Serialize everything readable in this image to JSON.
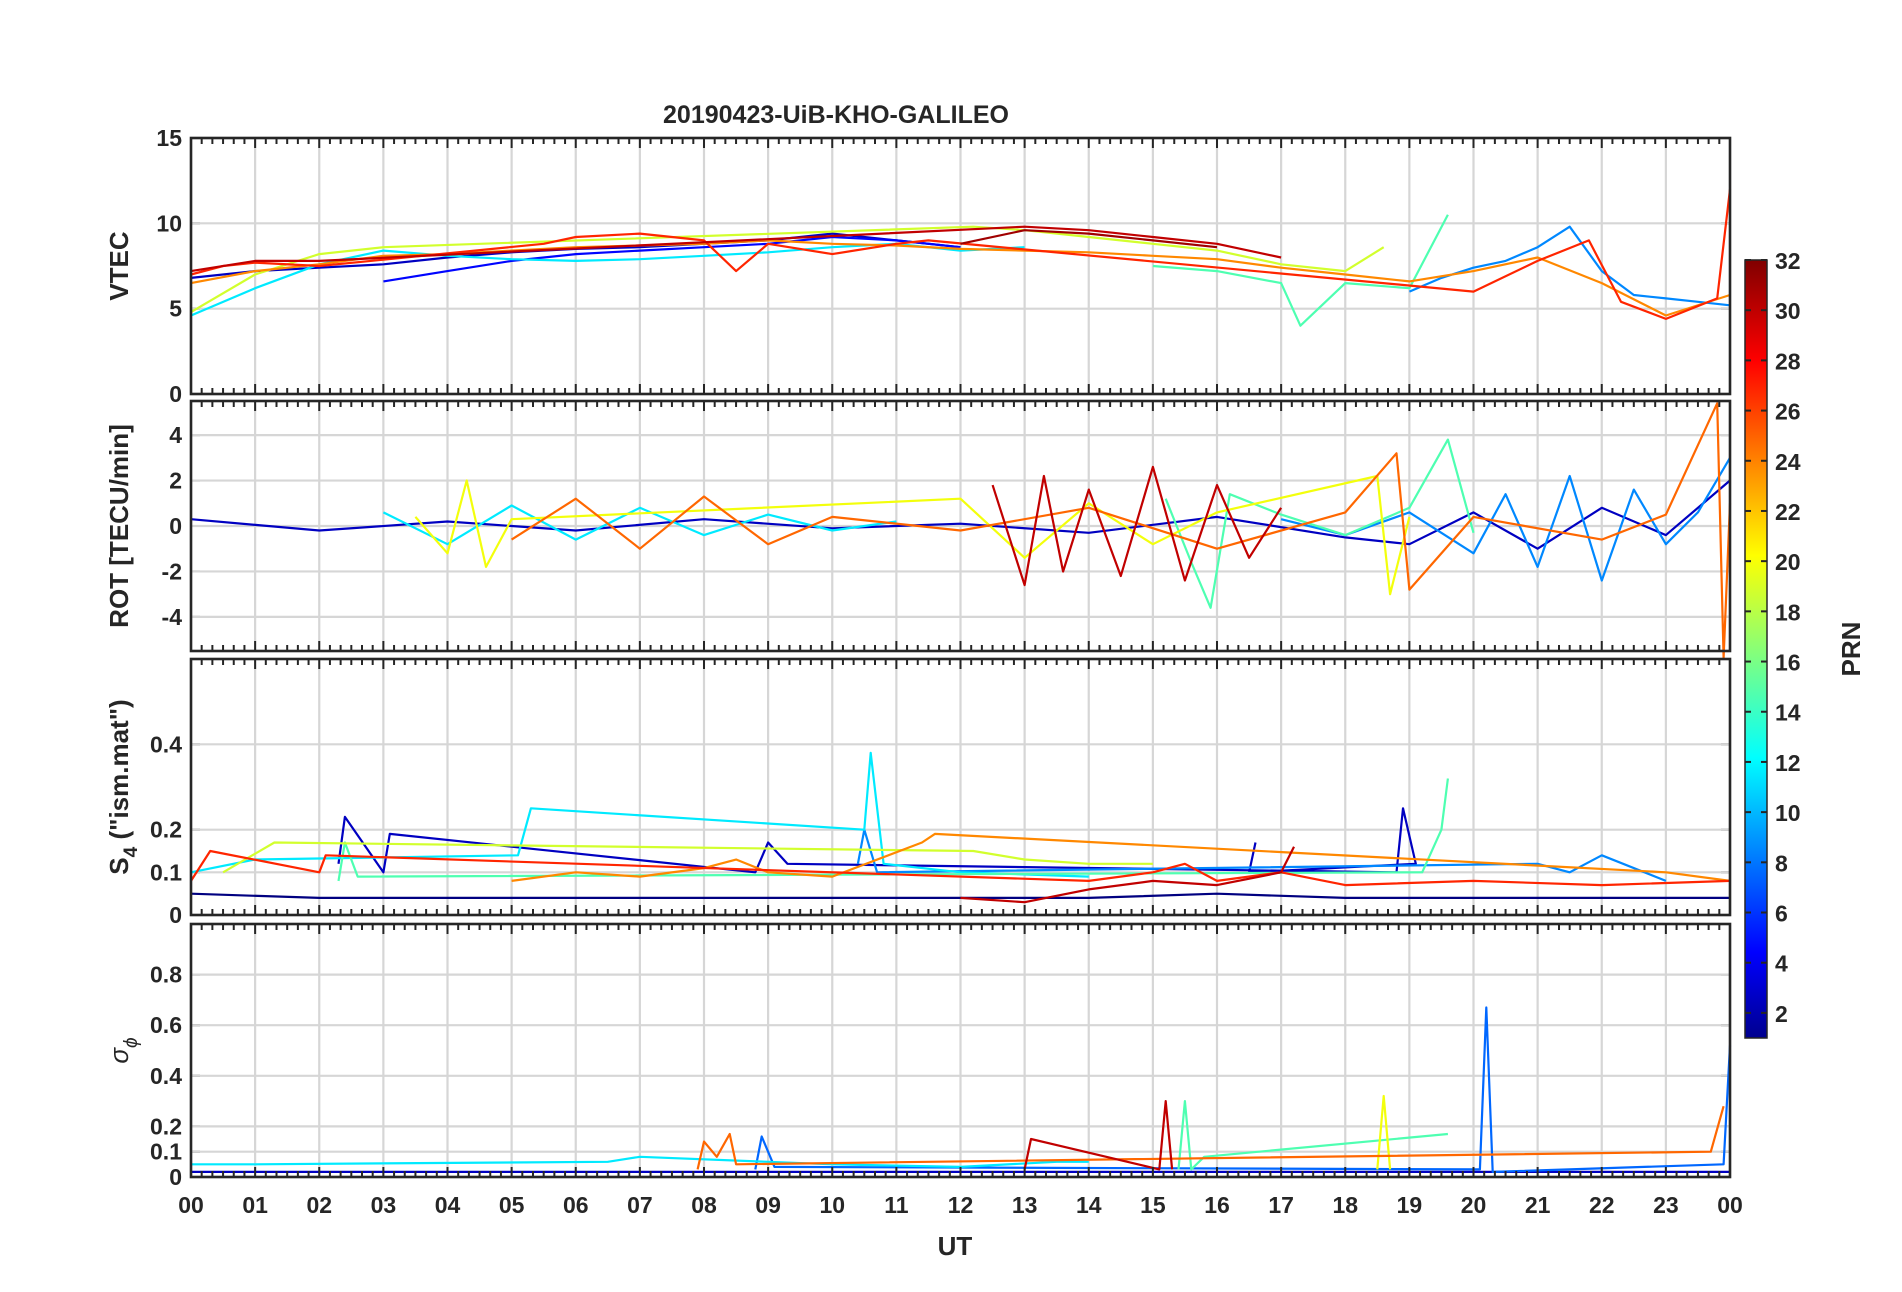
{
  "chart_data": {
    "type": "line",
    "title": "20190423-UiB-KHO-GALILEO",
    "xlabel": "UT",
    "x_ticks": [
      "00",
      "01",
      "02",
      "03",
      "04",
      "05",
      "06",
      "07",
      "08",
      "09",
      "10",
      "11",
      "12",
      "13",
      "14",
      "15",
      "16",
      "17",
      "18",
      "19",
      "20",
      "21",
      "22",
      "23",
      "00"
    ],
    "xlim_hours": [
      0,
      24
    ],
    "grid": true,
    "colorbar": {
      "label": "PRN",
      "range": [
        1,
        32
      ],
      "ticks": [
        "32",
        "30",
        "28",
        "26",
        "24",
        "22",
        "20",
        "18",
        "16",
        "14",
        "12",
        "10",
        "8",
        "6",
        "4",
        "2"
      ],
      "colormap": "jet",
      "placement": "right"
    },
    "panels": [
      {
        "key": "vtec",
        "ylabel": "VTEC",
        "ylim": [
          0,
          15
        ],
        "y_ticks": [
          "15",
          "10",
          "5",
          "0"
        ],
        "series": [
          {
            "prn": 3,
            "x": [
              0,
              1,
              2,
              3,
              4,
              5,
              6,
              7,
              8,
              9,
              10,
              11,
              12
            ],
            "y": [
              6.8,
              7.2,
              7.4,
              7.6,
              8.0,
              8.3,
              8.5,
              8.6,
              8.8,
              9.0,
              9.4,
              9.0,
              8.6
            ]
          },
          {
            "prn": 5,
            "x": [
              3,
              4,
              5,
              6,
              7,
              8,
              9,
              10,
              11,
              12
            ],
            "y": [
              6.6,
              7.2,
              7.8,
              8.2,
              8.4,
              8.6,
              8.8,
              9.2,
              9.0,
              8.6
            ]
          },
          {
            "prn": 9,
            "x": [
              19,
              19.5,
              20,
              20.5,
              21,
              21.5,
              22,
              22.5,
              23,
              23.5,
              24
            ],
            "y": [
              6.0,
              6.8,
              7.4,
              7.8,
              8.6,
              9.8,
              7.2,
              5.8,
              5.6,
              5.4,
              5.2
            ]
          },
          {
            "prn": 12,
            "x": [
              0,
              1,
              2,
              3,
              4,
              5,
              6,
              7,
              8,
              9,
              10,
              11,
              12,
              13
            ],
            "y": [
              4.6,
              6.2,
              7.6,
              8.4,
              8.1,
              7.9,
              7.8,
              7.9,
              8.1,
              8.3,
              8.6,
              8.8,
              8.4,
              8.6
            ]
          },
          {
            "prn": 15,
            "x": [
              15,
              16,
              17,
              17.3,
              18,
              19,
              19.6
            ],
            "y": [
              7.5,
              7.2,
              6.5,
              4.0,
              6.5,
              6.2,
              10.5
            ]
          },
          {
            "prn": 19,
            "x": [
              0,
              1,
              2,
              3,
              12.2,
              13,
              14,
              15,
              16,
              17,
              18,
              18.6
            ],
            "y": [
              4.8,
              7.0,
              8.2,
              8.6,
              9.8,
              9.6,
              9.2,
              8.8,
              8.4,
              7.6,
              7.2,
              8.6
            ]
          },
          {
            "prn": 24,
            "x": [
              0,
              1,
              2,
              3,
              4,
              5,
              6,
              7,
              8,
              9,
              10,
              11,
              12,
              13,
              14,
              15,
              16,
              17,
              18,
              19,
              20,
              21,
              22,
              23,
              24
            ],
            "y": [
              6.5,
              7.2,
              7.6,
              8.1,
              8.2,
              8.4,
              8.6,
              8.7,
              8.8,
              9.0,
              8.8,
              8.7,
              8.5,
              8.4,
              8.3,
              8.1,
              7.9,
              7.4,
              7.0,
              6.6,
              7.2,
              8.0,
              6.5,
              4.6,
              5.8
            ]
          },
          {
            "prn": 27,
            "x": [
              0,
              0.5,
              1,
              2,
              5.5,
              6,
              7,
              8,
              8.5,
              9,
              10,
              11,
              11.5,
              20,
              21,
              21.8,
              22.3,
              23,
              23.8,
              24
            ],
            "y": [
              7.0,
              7.5,
              7.7,
              7.5,
              8.8,
              9.2,
              9.4,
              9.0,
              7.2,
              8.8,
              8.2,
              8.8,
              9.0,
              6.0,
              7.8,
              9.0,
              5.4,
              4.4,
              5.6,
              12.0
            ]
          },
          {
            "prn": 30,
            "x": [
              0,
              1,
              2,
              13,
              14,
              15,
              16,
              17
            ],
            "y": [
              7.2,
              7.8,
              7.8,
              9.8,
              9.6,
              9.2,
              8.8,
              8.0
            ]
          },
          {
            "prn": 31,
            "x": [
              12,
              13,
              14,
              15,
              16
            ],
            "y": [
              8.8,
              9.6,
              9.4,
              9.0,
              8.6
            ]
          }
        ]
      },
      {
        "key": "rot",
        "ylabel": "ROT [TECU/min]",
        "ylim": [
          -5.5,
          5.5
        ],
        "y_ticks": [
          "4",
          "2",
          "0",
          "-2",
          "-4"
        ],
        "series": [
          {
            "prn": 3,
            "x": [
              0,
              2,
              4,
              6,
              8,
              10,
              12,
              14,
              16,
              18,
              19,
              20,
              21,
              22,
              23,
              24
            ],
            "y": [
              0.3,
              -0.2,
              0.2,
              -0.2,
              0.3,
              -0.1,
              0.1,
              -0.3,
              0.4,
              -0.5,
              -0.8,
              0.6,
              -1.0,
              0.8,
              -0.4,
              2.0
            ]
          },
          {
            "prn": 9,
            "x": [
              17,
              18,
              19,
              20,
              20.5,
              21,
              21.5,
              22,
              22.5,
              23,
              23.5,
              24
            ],
            "y": [
              0.3,
              -0.4,
              0.6,
              -1.2,
              1.4,
              -1.8,
              2.2,
              -2.4,
              1.6,
              -0.8,
              0.6,
              3.0
            ]
          },
          {
            "prn": 12,
            "x": [
              3,
              4,
              5,
              6,
              7,
              8,
              9,
              10,
              11
            ],
            "y": [
              0.6,
              -0.8,
              0.9,
              -0.6,
              0.8,
              -0.4,
              0.5,
              -0.2,
              0.2
            ]
          },
          {
            "prn": 15,
            "x": [
              15.2,
              15.6,
              15.9,
              16.2,
              17,
              18,
              19,
              19.6,
              20
            ],
            "y": [
              1.2,
              -1.6,
              -3.6,
              1.4,
              0.5,
              -0.4,
              0.8,
              3.8,
              -0.3
            ]
          },
          {
            "prn": 20,
            "x": [
              3.5,
              4,
              4.3,
              4.6,
              5,
              12,
              13,
              14,
              15,
              16,
              18.5,
              18.7,
              19
            ],
            "y": [
              0.4,
              -1.2,
              2.0,
              -1.8,
              0.3,
              1.2,
              -1.4,
              1.0,
              -0.8,
              0.6,
              2.2,
              -3.0,
              0.4
            ]
          },
          {
            "prn": 25,
            "x": [
              5,
              6,
              7,
              8,
              9,
              10,
              12,
              14,
              16,
              18,
              18.8,
              19,
              20,
              22,
              23,
              23.8,
              23.9,
              24
            ],
            "y": [
              -0.6,
              1.2,
              -1.0,
              1.3,
              -0.8,
              0.4,
              -0.2,
              0.8,
              -1.0,
              0.6,
              3.2,
              -2.8,
              0.4,
              -0.6,
              0.5,
              5.4,
              -5.8,
              1.0
            ]
          },
          {
            "prn": 30,
            "x": [
              12.5,
              13,
              13.3,
              13.6,
              14,
              14.5,
              15,
              15.5,
              16,
              16.5,
              17
            ],
            "y": [
              1.8,
              -2.6,
              2.2,
              -2.0,
              1.6,
              -2.2,
              2.6,
              -2.4,
              1.8,
              -1.4,
              0.8
            ]
          }
        ]
      },
      {
        "key": "s4",
        "ylabel": "S",
        "ylabel_sub": "4",
        "ylabel_suffix": " (\"ism.mat\")",
        "ylim": [
          0,
          0.6
        ],
        "y_ticks": [
          "0.4",
          "0.2",
          "0.1",
          "0"
        ],
        "series": [
          {
            "prn": 1,
            "x": [
              0,
              2,
              4,
              6,
              8,
              10,
              12,
              14,
              16,
              18,
              20,
              22,
              24
            ],
            "y": [
              0.05,
              0.04,
              0.04,
              0.04,
              0.04,
              0.04,
              0.04,
              0.04,
              0.05,
              0.04,
              0.04,
              0.04,
              0.04
            ]
          },
          {
            "prn": 3,
            "x": [
              2.3,
              2.4,
              3.0,
              3.1,
              8.8,
              9.0,
              9.3,
              18.8,
              18.9,
              19.1,
              16.5,
              16.6
            ],
            "y": [
              0.12,
              0.23,
              0.1,
              0.19,
              0.1,
              0.17,
              0.12,
              0.1,
              0.25,
              0.12,
              0.1,
              0.17
            ]
          },
          {
            "prn": 9,
            "x": [
              10.4,
              10.5,
              10.7,
              21,
              21.5,
              22,
              23
            ],
            "y": [
              0.12,
              0.2,
              0.1,
              0.12,
              0.1,
              0.14,
              0.08
            ]
          },
          {
            "prn": 12,
            "x": [
              0,
              1,
              5.1,
              5.3,
              10.5,
              10.6,
              10.8,
              12,
              14
            ],
            "y": [
              0.1,
              0.13,
              0.14,
              0.25,
              0.2,
              0.38,
              0.12,
              0.1,
              0.09
            ]
          },
          {
            "prn": 15,
            "x": [
              2.3,
              2.4,
              2.6,
              19.2,
              19.5,
              19.6
            ],
            "y": [
              0.08,
              0.17,
              0.09,
              0.1,
              0.2,
              0.32
            ]
          },
          {
            "prn": 19,
            "x": [
              0.5,
              1.3,
              12.2,
              13,
              14,
              15
            ],
            "y": [
              0.1,
              0.17,
              0.15,
              0.13,
              0.12,
              0.12
            ]
          },
          {
            "prn": 24,
            "x": [
              5,
              6,
              7,
              8,
              8.5,
              9,
              10,
              11.4,
              11.6,
              23,
              24
            ],
            "y": [
              0.08,
              0.1,
              0.09,
              0.11,
              0.13,
              0.1,
              0.09,
              0.17,
              0.19,
              0.1,
              0.08
            ]
          },
          {
            "prn": 27,
            "x": [
              0,
              0.3,
              2,
              2.1,
              14,
              15,
              15.5,
              16,
              17,
              18,
              20,
              22,
              24
            ],
            "y": [
              0.08,
              0.15,
              0.1,
              0.14,
              0.08,
              0.1,
              0.12,
              0.08,
              0.1,
              0.07,
              0.08,
              0.07,
              0.08
            ]
          },
          {
            "prn": 30,
            "x": [
              12,
              13,
              14,
              15,
              16,
              17,
              17.2
            ],
            "y": [
              0.04,
              0.03,
              0.06,
              0.08,
              0.07,
              0.1,
              0.16
            ]
          }
        ]
      },
      {
        "key": "sigma_phi",
        "ylabel": "σ",
        "ylabel_sub": "ϕ",
        "ylim": [
          0,
          1.0
        ],
        "y_ticks": [
          "0.8",
          "0.6",
          "0.4",
          "0.2",
          "0.1",
          "0"
        ],
        "series": [
          {
            "prn": 3,
            "x": [
              0,
              4,
              8,
              12,
              16,
              20,
              24
            ],
            "y": [
              0.02,
              0.02,
              0.02,
              0.02,
              0.02,
              0.02,
              0.02
            ]
          },
          {
            "prn": 8,
            "x": [
              8.8,
              8.9,
              9.1,
              20.1,
              20.2,
              20.3,
              23.9,
              24
            ],
            "y": [
              0.03,
              0.16,
              0.04,
              0.03,
              0.67,
              0.02,
              0.05,
              0.52
            ]
          },
          {
            "prn": 12,
            "x": [
              0,
              1,
              6.5,
              7,
              10,
              12,
              13.5,
              14
            ],
            "y": [
              0.05,
              0.05,
              0.06,
              0.08,
              0.05,
              0.04,
              0.06,
              0.06
            ]
          },
          {
            "prn": 15,
            "x": [
              15.4,
              15.5,
              15.6,
              15.8,
              19.6
            ],
            "y": [
              0.03,
              0.3,
              0.03,
              0.08,
              0.17
            ]
          },
          {
            "prn": 20,
            "x": [
              18.5,
              18.6,
              18.7
            ],
            "y": [
              0.03,
              0.32,
              0.03
            ]
          },
          {
            "prn": 25,
            "x": [
              7.9,
              8.0,
              8.2,
              8.4,
              8.5,
              23.7,
              23.9
            ],
            "y": [
              0.03,
              0.14,
              0.08,
              0.17,
              0.05,
              0.1,
              0.28
            ]
          },
          {
            "prn": 30,
            "x": [
              13.0,
              13.1,
              15.1,
              15.2,
              15.3
            ],
            "y": [
              0.03,
              0.15,
              0.03,
              0.3,
              0.03
            ]
          }
        ]
      }
    ]
  }
}
